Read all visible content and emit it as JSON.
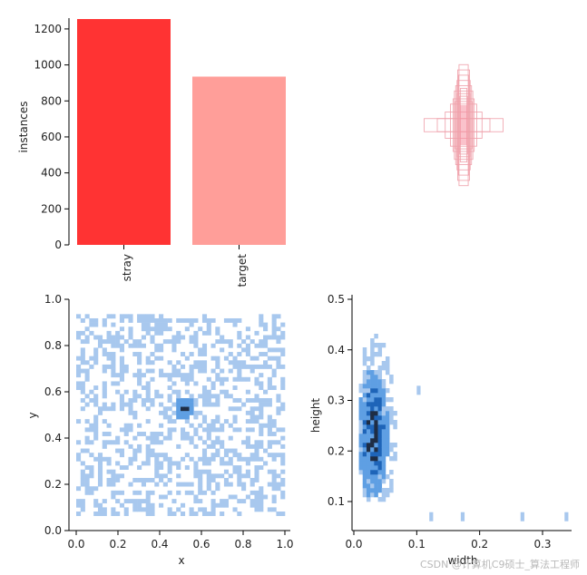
{
  "watermark": "CSDN @计算机C9硕士_算法工程师",
  "colors": {
    "stray": "#ff3333",
    "target": "#ff9e99",
    "hist_light": "#a8c8ee",
    "hist_mid": "#5f9fe3",
    "hist_dark": "#1e64b8",
    "hist_darkest": "#1f2d44"
  },
  "chart_data": [
    {
      "type": "bar",
      "categories": [
        "stray",
        "target"
      ],
      "values": [
        1255,
        935
      ],
      "ylabel": "instances",
      "xlabel": "",
      "ylim": [
        0,
        1260
      ],
      "yticks": [
        "0",
        "200",
        "400",
        "600",
        "800",
        "1000",
        "1200"
      ],
      "tick_values": [
        0,
        200,
        400,
        600,
        800,
        1000,
        1200
      ]
    },
    {
      "type": "scatter",
      "description_of_content": "overlay of bounding box rectangles centered in a unit square",
      "boxes": [
        {
          "w": 0.3,
          "h": 0.05
        },
        {
          "w": 0.2,
          "h": 0.05
        },
        {
          "w": 0.14,
          "h": 0.1
        },
        {
          "w": 0.1,
          "h": 0.16
        },
        {
          "w": 0.08,
          "h": 0.2
        },
        {
          "w": 0.07,
          "h": 0.26
        },
        {
          "w": 0.06,
          "h": 0.3
        },
        {
          "w": 0.05,
          "h": 0.34
        },
        {
          "w": 0.04,
          "h": 0.38
        },
        {
          "w": 0.045,
          "h": 0.42
        },
        {
          "w": 0.035,
          "h": 0.46
        },
        {
          "w": 0.05,
          "h": 0.24
        },
        {
          "w": 0.065,
          "h": 0.18
        },
        {
          "w": 0.025,
          "h": 0.28
        },
        {
          "w": 0.03,
          "h": 0.22
        }
      ]
    },
    {
      "type": "heatmap",
      "xlabel": "x",
      "ylabel": "y",
      "xlim": [
        0,
        1
      ],
      "ylim": [
        0,
        1
      ],
      "xticks": [
        "0.0",
        "0.2",
        "0.4",
        "0.6",
        "0.8",
        "1.0"
      ],
      "yticks": [
        "0.0",
        "0.2",
        "0.4",
        "0.6",
        "0.8",
        "1.0"
      ],
      "x_range": [
        0.0,
        1.0
      ],
      "y_range": [
        0.05,
        0.95
      ],
      "hotspot": {
        "x": 0.51,
        "y": 0.52
      }
    },
    {
      "type": "heatmap",
      "xlabel": "width",
      "ylabel": "height",
      "xlim": [
        -0.02,
        0.36
      ],
      "ylim": [
        0.05,
        0.52
      ],
      "xticks": [
        "0.0",
        "0.1",
        "0.2",
        "0.3"
      ],
      "xtick_values": [
        0.0,
        0.1,
        0.2,
        0.3
      ],
      "yticks": [
        "0.1",
        "0.2",
        "0.3",
        "0.4",
        "0.5"
      ],
      "ytick_values": [
        0.1,
        0.2,
        0.3,
        0.4,
        0.5
      ],
      "core": {
        "width": [
          0.01,
          0.045
        ],
        "height": [
          0.12,
          0.33
        ]
      },
      "outliers": [
        {
          "width": 0.1,
          "height": 0.32
        },
        {
          "width": 0.12,
          "height": 0.07
        },
        {
          "width": 0.17,
          "height": 0.07
        },
        {
          "width": 0.265,
          "height": 0.07
        },
        {
          "width": 0.335,
          "height": 0.07
        }
      ]
    }
  ]
}
